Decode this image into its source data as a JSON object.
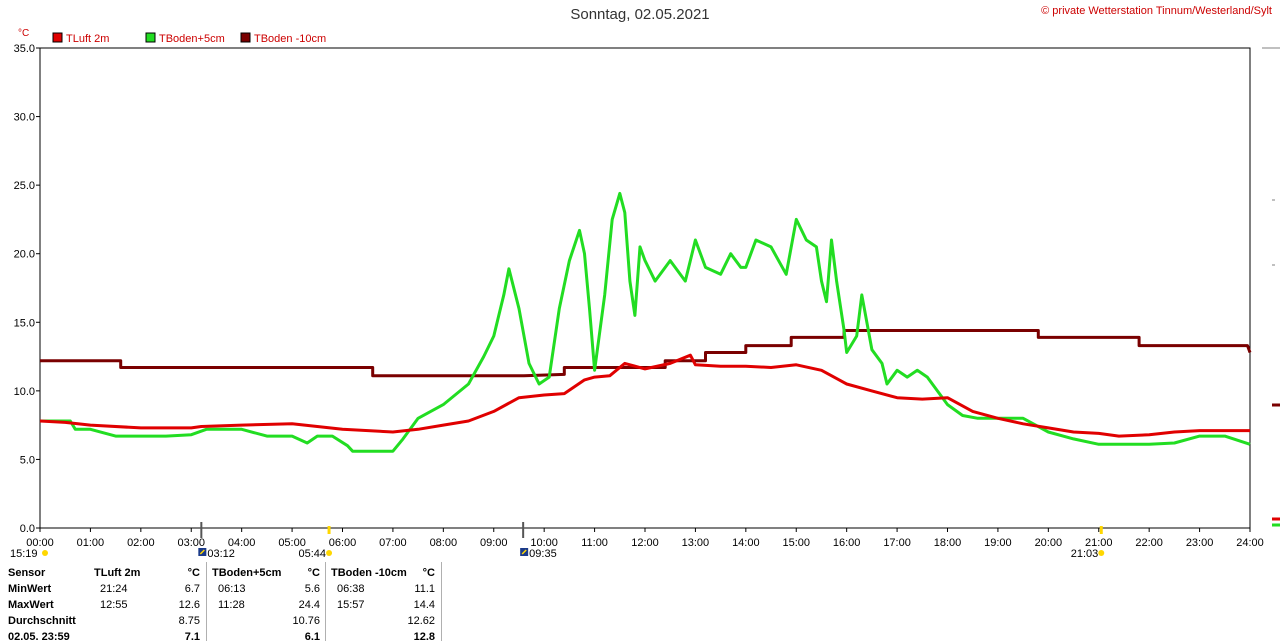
{
  "title": "Sonntag, 02.05.2021",
  "copyright": "© private Wetterstation Tinnum/Westerland/Sylt",
  "yunit": "°C",
  "colors": {
    "tluft": "#e00000",
    "tboden5": "#22dd22",
    "tboden10": "#7a0000",
    "grid": "#808080",
    "axis": "#cc0000"
  },
  "chart_data": {
    "type": "line",
    "xlabel": "",
    "ylabel": "°C",
    "ylim": [
      0,
      35
    ],
    "xlim": [
      0,
      24
    ],
    "grid": true,
    "legend_position": "top-left",
    "yticks": [
      "0.0",
      "5.0",
      "10.0",
      "15.0",
      "20.0",
      "25.0",
      "30.0",
      "35.0"
    ],
    "xticks": [
      "00:00",
      "01:00",
      "02:00",
      "03:00",
      "04:00",
      "05:00",
      "06:00",
      "07:00",
      "08:00",
      "09:00",
      "10:00",
      "11:00",
      "12:00",
      "13:00",
      "14:00",
      "15:00",
      "16:00",
      "17:00",
      "18:00",
      "19:00",
      "20:00",
      "21:00",
      "22:00",
      "23:00",
      "24:00"
    ],
    "series": [
      {
        "name": "TLuft 2m",
        "color": "#e00000",
        "points": [
          [
            0,
            7.8
          ],
          [
            0.5,
            7.7
          ],
          [
            1,
            7.5
          ],
          [
            2,
            7.3
          ],
          [
            3,
            7.3
          ],
          [
            3.2,
            7.4
          ],
          [
            4,
            7.5
          ],
          [
            5,
            7.6
          ],
          [
            5.5,
            7.4
          ],
          [
            6,
            7.2
          ],
          [
            7,
            7.0
          ],
          [
            7.5,
            7.2
          ],
          [
            8,
            7.5
          ],
          [
            8.5,
            7.8
          ],
          [
            9,
            8.5
          ],
          [
            9.5,
            9.5
          ],
          [
            10,
            9.7
          ],
          [
            10.4,
            9.8
          ],
          [
            10.8,
            10.8
          ],
          [
            11,
            11.0
          ],
          [
            11.3,
            11.1
          ],
          [
            11.6,
            12.0
          ],
          [
            12,
            11.6
          ],
          [
            12.5,
            12.0
          ],
          [
            12.9,
            12.6
          ],
          [
            13,
            11.9
          ],
          [
            13.5,
            11.8
          ],
          [
            14,
            11.8
          ],
          [
            14.5,
            11.7
          ],
          [
            15,
            11.9
          ],
          [
            15.5,
            11.5
          ],
          [
            16,
            10.5
          ],
          [
            16.5,
            10.0
          ],
          [
            17,
            9.5
          ],
          [
            17.5,
            9.4
          ],
          [
            18,
            9.5
          ],
          [
            18.5,
            8.5
          ],
          [
            19,
            8.0
          ],
          [
            19.5,
            7.6
          ],
          [
            20,
            7.3
          ],
          [
            20.5,
            7.0
          ],
          [
            21,
            6.9
          ],
          [
            21.4,
            6.7
          ],
          [
            22,
            6.8
          ],
          [
            22.5,
            7.0
          ],
          [
            23,
            7.1
          ],
          [
            24,
            7.1
          ]
        ]
      },
      {
        "name": "TBoden+5cm",
        "color": "#22dd22",
        "points": [
          [
            0,
            7.8
          ],
          [
            0.6,
            7.8
          ],
          [
            0.7,
            7.2
          ],
          [
            1,
            7.2
          ],
          [
            1.5,
            6.7
          ],
          [
            2,
            6.7
          ],
          [
            2.5,
            6.7
          ],
          [
            3,
            6.8
          ],
          [
            3.3,
            7.2
          ],
          [
            4,
            7.2
          ],
          [
            4.5,
            6.7
          ],
          [
            5,
            6.7
          ],
          [
            5.3,
            6.2
          ],
          [
            5.5,
            6.7
          ],
          [
            5.8,
            6.7
          ],
          [
            6.1,
            6.0
          ],
          [
            6.2,
            5.6
          ],
          [
            6.6,
            5.6
          ],
          [
            7,
            5.6
          ],
          [
            7.2,
            6.5
          ],
          [
            7.5,
            8.0
          ],
          [
            8,
            9.0
          ],
          [
            8.5,
            10.5
          ],
          [
            8.8,
            12.5
          ],
          [
            9,
            14.0
          ],
          [
            9.1,
            15.5
          ],
          [
            9.2,
            17.0
          ],
          [
            9.3,
            18.9
          ],
          [
            9.5,
            16.0
          ],
          [
            9.7,
            12.0
          ],
          [
            9.9,
            10.5
          ],
          [
            10.1,
            11.0
          ],
          [
            10.3,
            16.0
          ],
          [
            10.5,
            19.5
          ],
          [
            10.7,
            21.7
          ],
          [
            10.8,
            20.0
          ],
          [
            10.9,
            16.0
          ],
          [
            11,
            11.5
          ],
          [
            11.2,
            17.0
          ],
          [
            11.35,
            22.5
          ],
          [
            11.5,
            24.4
          ],
          [
            11.6,
            23.0
          ],
          [
            11.7,
            18.0
          ],
          [
            11.8,
            15.5
          ],
          [
            11.9,
            20.5
          ],
          [
            12,
            19.5
          ],
          [
            12.2,
            18.0
          ],
          [
            12.5,
            19.5
          ],
          [
            12.8,
            18.0
          ],
          [
            13,
            21.0
          ],
          [
            13.2,
            19.0
          ],
          [
            13.5,
            18.5
          ],
          [
            13.7,
            20.0
          ],
          [
            13.9,
            19.0
          ],
          [
            14,
            19.0
          ],
          [
            14.2,
            21.0
          ],
          [
            14.5,
            20.5
          ],
          [
            14.8,
            18.5
          ],
          [
            15,
            22.5
          ],
          [
            15.2,
            21.0
          ],
          [
            15.4,
            20.5
          ],
          [
            15.5,
            18.0
          ],
          [
            15.6,
            16.5
          ],
          [
            15.7,
            21.0
          ],
          [
            15.8,
            18.0
          ],
          [
            15.95,
            14.4
          ],
          [
            16,
            12.8
          ],
          [
            16.2,
            14.0
          ],
          [
            16.3,
            17.0
          ],
          [
            16.5,
            13.0
          ],
          [
            16.7,
            12.0
          ],
          [
            16.8,
            10.5
          ],
          [
            17,
            11.5
          ],
          [
            17.2,
            11.0
          ],
          [
            17.4,
            11.5
          ],
          [
            17.6,
            11.0
          ],
          [
            17.8,
            10.0
          ],
          [
            18,
            9.0
          ],
          [
            18.3,
            8.2
          ],
          [
            18.6,
            8.0
          ],
          [
            19,
            8.0
          ],
          [
            19.5,
            8.0
          ],
          [
            20,
            7.0
          ],
          [
            20.5,
            6.5
          ],
          [
            21,
            6.1
          ],
          [
            21.5,
            6.1
          ],
          [
            22,
            6.1
          ],
          [
            22.5,
            6.2
          ],
          [
            23,
            6.7
          ],
          [
            23.5,
            6.7
          ],
          [
            24,
            6.1
          ]
        ]
      },
      {
        "name": "TBoden -10cm",
        "color": "#7a0000",
        "points": [
          [
            0,
            12.2
          ],
          [
            1.6,
            12.2
          ],
          [
            1.6,
            11.7
          ],
          [
            6.6,
            11.7
          ],
          [
            6.6,
            11.1
          ],
          [
            9.6,
            11.1
          ],
          [
            10.4,
            11.2
          ],
          [
            10.4,
            11.7
          ],
          [
            12.4,
            11.7
          ],
          [
            12.4,
            12.2
          ],
          [
            13.2,
            12.2
          ],
          [
            13.2,
            12.8
          ],
          [
            14,
            12.8
          ],
          [
            14,
            13.3
          ],
          [
            14.9,
            13.3
          ],
          [
            14.9,
            13.9
          ],
          [
            15.95,
            13.9
          ],
          [
            15.95,
            14.4
          ],
          [
            19.8,
            14.4
          ],
          [
            19.8,
            13.9
          ],
          [
            21.8,
            13.9
          ],
          [
            21.8,
            13.3
          ],
          [
            23.95,
            13.3
          ],
          [
            24,
            12.8
          ]
        ]
      }
    ]
  },
  "markers": {
    "sunrise": "05:44",
    "sunset": "21:03",
    "moonrise": "03:12",
    "moonset": "09:35",
    "left_time": "15:19"
  },
  "table": {
    "rows": [
      "Sensor",
      "MinWert",
      "MaxWert",
      "Durchschnitt",
      "02.05. 23:59"
    ],
    "columns": [
      {
        "header": "TLuft 2m",
        "unit": "°C",
        "values": [
          [
            "21:24",
            "6.7"
          ],
          [
            "12:55",
            "12.6"
          ],
          [
            "",
            "8.75"
          ],
          [
            "",
            "7.1"
          ]
        ]
      },
      {
        "header": "TBoden+5cm",
        "unit": "°C",
        "values": [
          [
            "06:13",
            "5.6"
          ],
          [
            "11:28",
            "24.4"
          ],
          [
            "",
            "10.76"
          ],
          [
            "",
            "6.1"
          ]
        ]
      },
      {
        "header": "TBoden -10cm",
        "unit": "°C",
        "values": [
          [
            "06:38",
            "11.1"
          ],
          [
            "15:57",
            "14.4"
          ],
          [
            "",
            "12.62"
          ],
          [
            "",
            "12.8"
          ]
        ]
      }
    ]
  }
}
